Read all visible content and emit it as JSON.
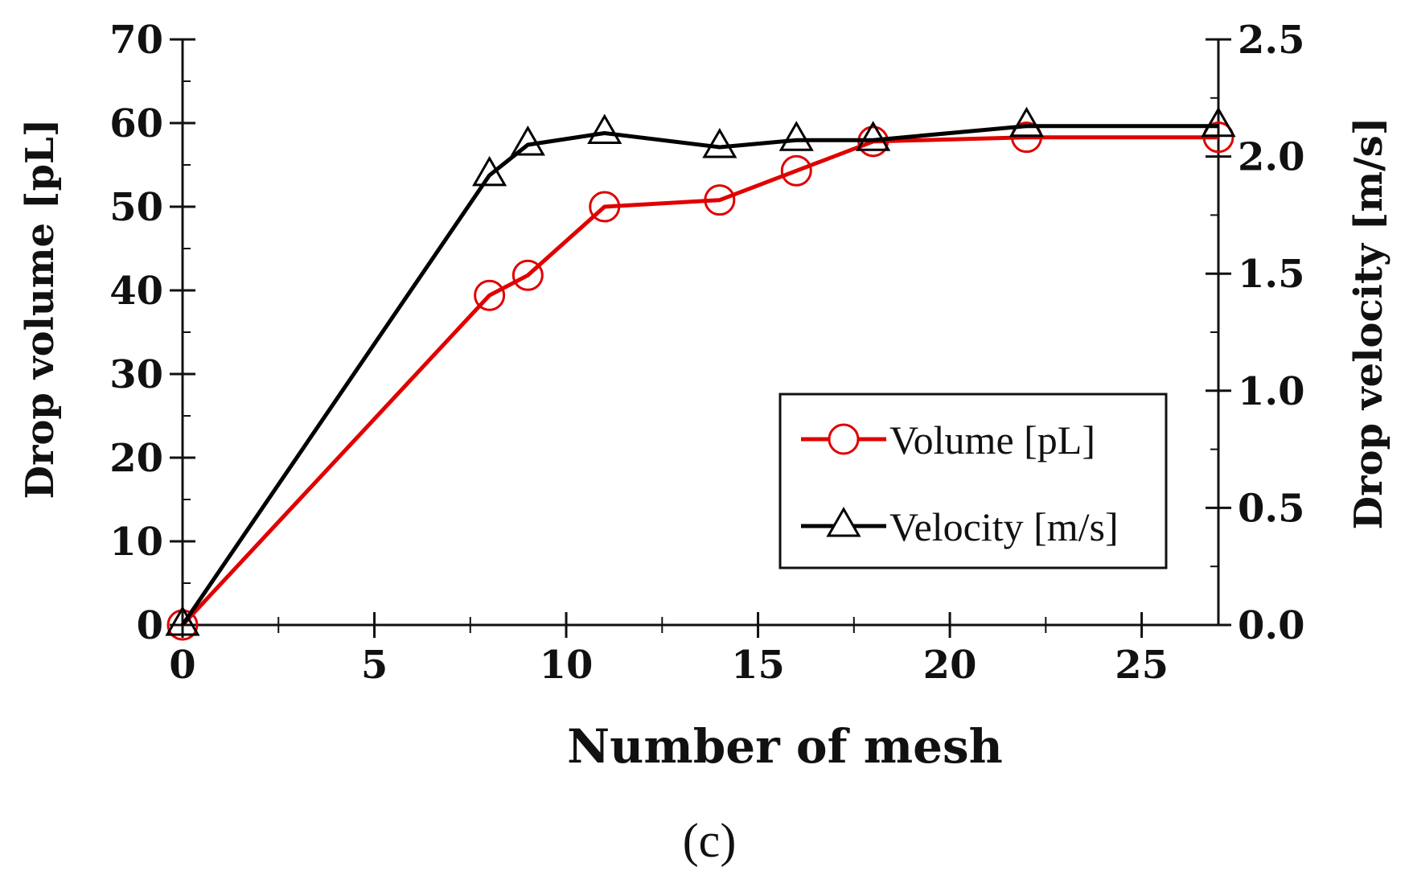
{
  "chart_data": {
    "type": "line",
    "title": "",
    "xlabel": "Number of mesh",
    "ylabel": "Drop volume [pL]",
    "y2label": "Drop velocity [m/s]",
    "xlim": [
      0,
      27
    ],
    "ylim": [
      0,
      70
    ],
    "y2lim": [
      0,
      2.5
    ],
    "xticks": [
      "0",
      "5",
      "10",
      "15",
      "20",
      "25"
    ],
    "yticks": [
      "0",
      "10",
      "20",
      "30",
      "40",
      "50",
      "60",
      "70"
    ],
    "y2ticks": [
      "0.0",
      "0.5",
      "1.0",
      "1.5",
      "2.0",
      "2.5"
    ],
    "x": [
      0,
      8,
      9,
      11,
      14,
      16,
      18,
      22,
      27
    ],
    "series": [
      {
        "name": "Volume [pL]",
        "axis": "left",
        "marker": "circle",
        "color": "#e00000",
        "values": [
          0,
          39.4,
          41.8,
          50.0,
          50.8,
          54.3,
          57.8,
          58.3,
          58.3
        ]
      },
      {
        "name": "Velocity [m/s]",
        "axis": "right",
        "marker": "triangle",
        "color": "#000000",
        "values": [
          0,
          1.92,
          2.05,
          2.1,
          2.04,
          2.07,
          2.07,
          2.13,
          2.13
        ]
      }
    ],
    "legend": {
      "position": "bottom-right"
    },
    "grid": false
  },
  "caption": "(c)"
}
